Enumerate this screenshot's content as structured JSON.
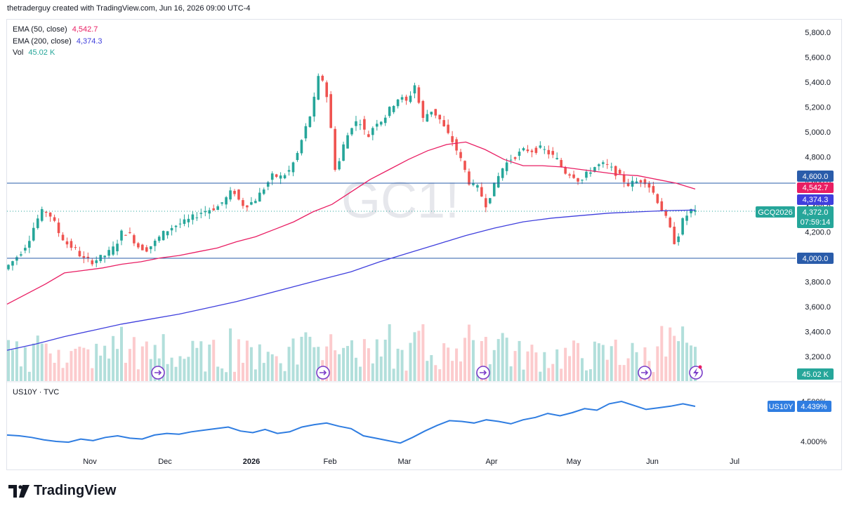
{
  "header": {
    "attribution": "thetraderguy created with TradingView.com, Jun 16, 2026 09:00 UTC-4"
  },
  "watermark": "GC1!",
  "legend": {
    "ema50": {
      "label": "EMA (50, close)",
      "value": "4,542.7",
      "color": "#e91e63"
    },
    "ema200": {
      "label": "EMA (200, close)",
      "value": "4,374.3",
      "color": "#3f3fdd"
    },
    "vol": {
      "label": "Vol",
      "value": "45.02 K",
      "color": "#26a69a"
    }
  },
  "price_tags": {
    "hline_upper": "4,600.0",
    "ema50": "4,542.7",
    "ema200": "4,374.3",
    "symbol": "GCQ2026",
    "last_price": "4,372.0",
    "countdown": "07:59:14",
    "hline_lower": "4,000.0",
    "volume": "45.02 K"
  },
  "us10y": {
    "title": "US10Y · TVC",
    "tag_label": "US10Y",
    "tag_value": "4.439%",
    "tick_upper": "4.500%",
    "tick_lower": "4.000%"
  },
  "brand": {
    "name": "TradingView"
  },
  "colors": {
    "up": "#26a69a",
    "down": "#ef5350",
    "ema50": "#e91e63",
    "ema200": "#3f3fdd",
    "hline": "#2a5caa",
    "us10y": "#2f7de1",
    "vol_up": "#b2dfdb",
    "vol_down": "#fccbcd"
  },
  "chart_data": {
    "type": "candlestick",
    "price_axis": {
      "ticks": [
        "5,800.0",
        "5,600.0",
        "5,400.0",
        "5,200.0",
        "5,000.0",
        "4,800.0",
        "4,600.0",
        "4,400.0",
        "4,200.0",
        "4,000.0",
        "3,800.0",
        "3,600.0",
        "3,400.0",
        "3,200.0"
      ],
      "range": [
        3150,
        5850
      ]
    },
    "time_axis": [
      "Nov",
      "Dec",
      "2026",
      "Feb",
      "Mar",
      "Apr",
      "May",
      "Jun",
      "Jul"
    ],
    "horizontal_lines": [
      4600,
      4000
    ],
    "last_price": 4372.0,
    "ohlc_path": [
      3900,
      3960,
      4030,
      4120,
      4280,
      4380,
      4320,
      4180,
      4100,
      4060,
      3980,
      3960,
      3985,
      4020,
      4080,
      4210,
      4170,
      4080,
      4060,
      4110,
      4180,
      4230,
      4260,
      4280,
      4320,
      4360,
      4380,
      4400,
      4460,
      4540,
      4420,
      4420,
      4470,
      4560,
      4650,
      4640,
      4680,
      4800,
      5000,
      5180,
      5500,
      5250,
      4660,
      4900,
      5050,
      5100,
      4950,
      5080,
      5100,
      5200,
      5280,
      5240,
      5380,
      5100,
      5180,
      5120,
      5000,
      4900,
      4750,
      4580,
      4550,
      4420,
      4560,
      4700,
      4780,
      4820,
      4860,
      4850,
      4870,
      4830,
      4780,
      4680,
      4660,
      4600,
      4680,
      4730,
      4740,
      4700,
      4640,
      4580,
      4600,
      4620,
      4540,
      4420,
      4280,
      4100,
      4300,
      4372
    ],
    "ema50_path": [
      3620,
      3700,
      3780,
      3870,
      3890,
      3910,
      3940,
      3960,
      3990,
      4010,
      4040,
      4070,
      4120,
      4160,
      4220,
      4280,
      4360,
      4420,
      4520,
      4620,
      4700,
      4780,
      4850,
      4900,
      4920,
      4860,
      4780,
      4730,
      4730,
      4720,
      4700,
      4680,
      4660,
      4650,
      4620,
      4590,
      4542.7
    ],
    "ema200_path": [
      3250,
      3300,
      3360,
      3410,
      3460,
      3500,
      3540,
      3590,
      3640,
      3700,
      3760,
      3820,
      3880,
      3960,
      4030,
      4100,
      4170,
      4230,
      4280,
      4310,
      4330,
      4350,
      4360,
      4370,
      4374.3
    ],
    "us10y_path": [
      4.08,
      4.07,
      4.05,
      4.02,
      4.0,
      3.99,
      4.03,
      4.01,
      4.05,
      4.07,
      4.04,
      4.03,
      4.08,
      4.1,
      4.09,
      4.12,
      4.14,
      4.16,
      4.18,
      4.13,
      4.11,
      4.15,
      4.1,
      4.12,
      4.18,
      4.21,
      4.23,
      4.19,
      4.16,
      4.07,
      4.04,
      4.01,
      3.98,
      4.05,
      4.13,
      4.2,
      4.26,
      4.25,
      4.23,
      4.27,
      4.25,
      4.22,
      4.27,
      4.3,
      4.35,
      4.32,
      4.36,
      4.41,
      4.39,
      4.47,
      4.5,
      4.45,
      4.4,
      4.42,
      4.44,
      4.47,
      4.439
    ]
  }
}
